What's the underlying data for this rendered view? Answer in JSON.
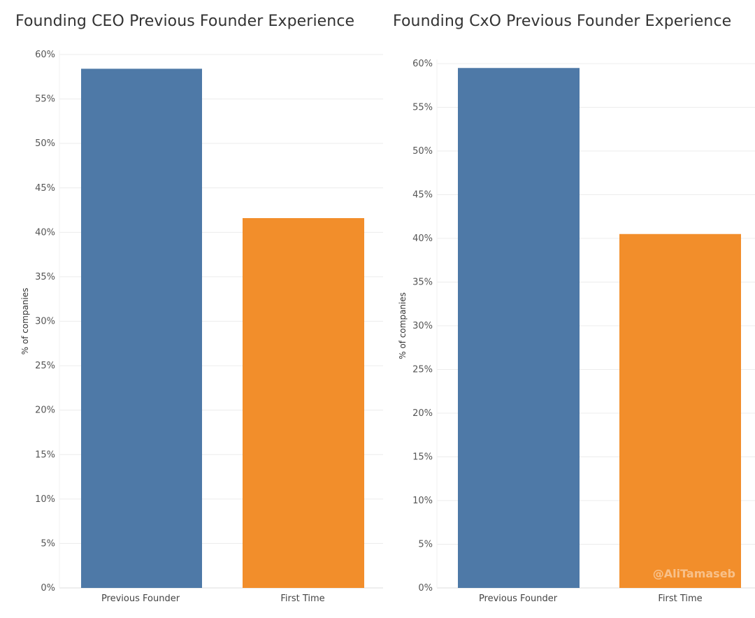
{
  "chart_data": [
    {
      "type": "bar",
      "title": "Founding CEO Previous Founder Experience",
      "categories": [
        "Previous Founder",
        "First Time"
      ],
      "values": [
        58.4,
        41.6
      ],
      "colors": [
        "#4e79a7",
        "#f28e2b"
      ],
      "xlabel": "",
      "ylabel": "% of companies",
      "ylim": [
        0,
        60
      ],
      "yticks": [
        "0%",
        "5%",
        "10%",
        "15%",
        "20%",
        "25%",
        "30%",
        "35%",
        "40%",
        "45%",
        "50%",
        "55%",
        "60%"
      ],
      "grid": true
    },
    {
      "type": "bar",
      "title": "Founding CxO Previous Founder Experience",
      "categories": [
        "Previous Founder",
        "First Time"
      ],
      "values": [
        59.5,
        40.5
      ],
      "colors": [
        "#4e79a7",
        "#f28e2b"
      ],
      "xlabel": "",
      "ylabel": "% of companies",
      "ylim": [
        0,
        60
      ],
      "yticks": [
        "0%",
        "5%",
        "10%",
        "15%",
        "20%",
        "25%",
        "30%",
        "35%",
        "40%",
        "45%",
        "50%",
        "55%",
        "60%"
      ],
      "grid": true
    }
  ],
  "watermark": "@AliTamaseb"
}
